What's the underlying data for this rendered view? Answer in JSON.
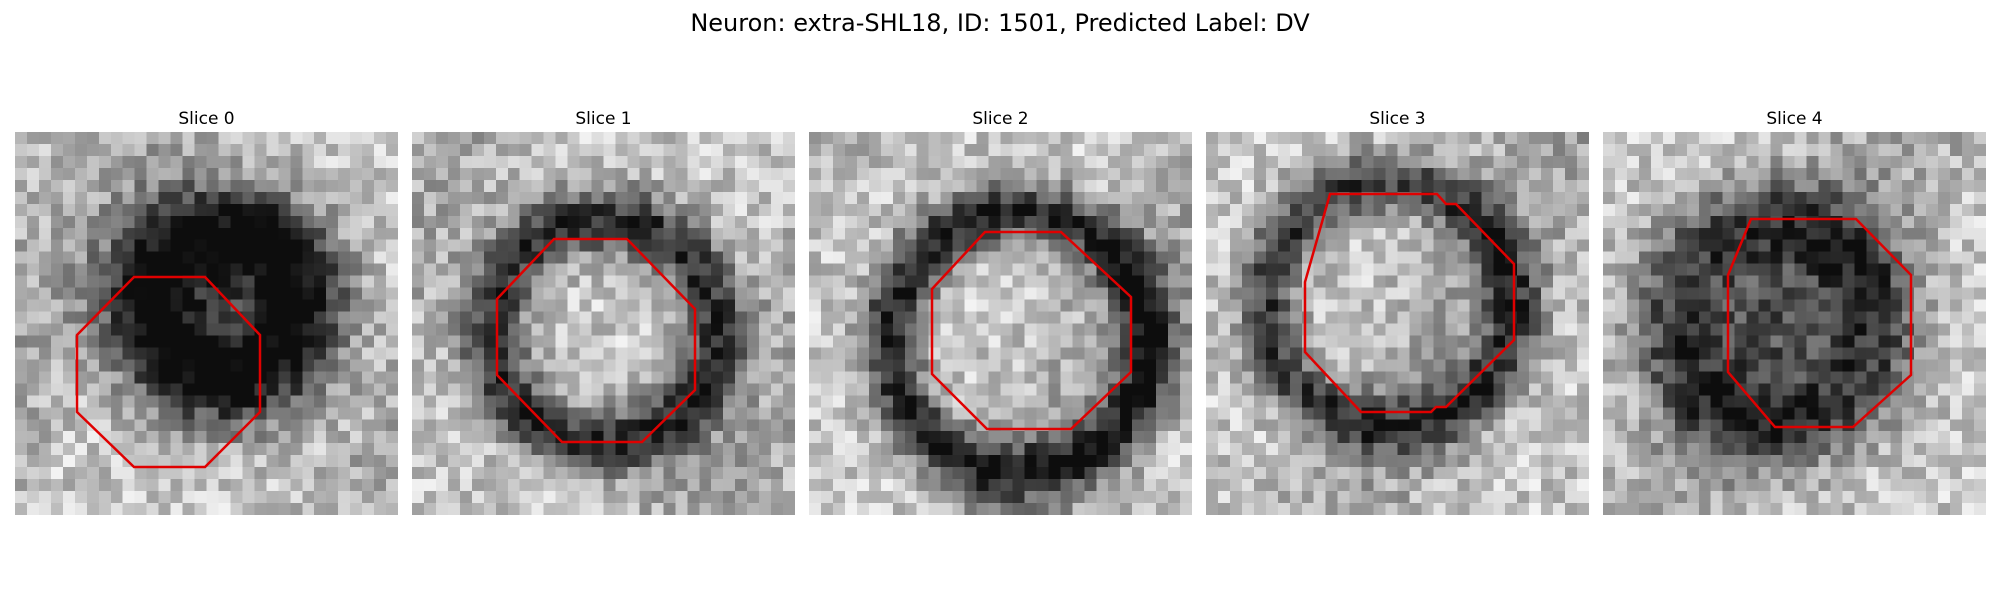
{
  "figure": {
    "title": "Neuron: extra-SHL18, ID: 1501, Predicted Label: DV"
  },
  "panels": [
    {
      "title": "Slice 0",
      "outline_color": "#e00000"
    },
    {
      "title": "Slice 1",
      "outline_color": "#e00000"
    },
    {
      "title": "Slice 2",
      "outline_color": "#e00000"
    },
    {
      "title": "Slice 3",
      "outline_color": "#e00000"
    },
    {
      "title": "Slice 4",
      "outline_color": "#e00000"
    }
  ]
}
